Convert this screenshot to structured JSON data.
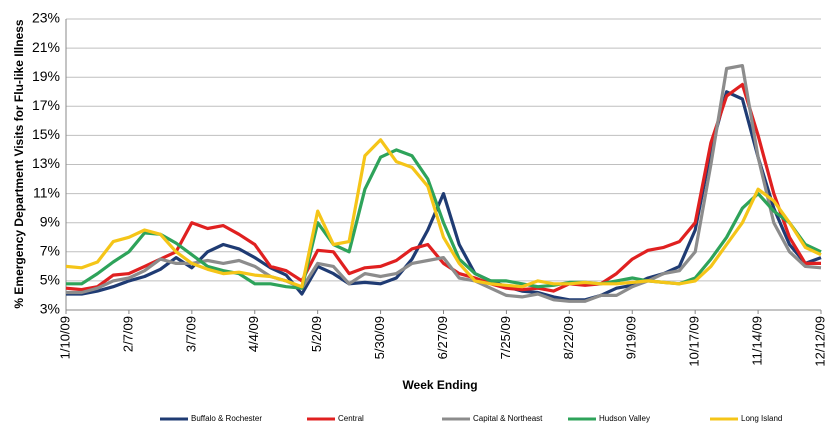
{
  "chart_data": {
    "type": "line",
    "x_label": "Week Ending",
    "y_label": "% Emergency Department Visits for Flu-like Illness",
    "categories": [
      "1/10/09",
      null,
      null,
      null,
      "2/7/09",
      null,
      null,
      null,
      "3/7/09",
      null,
      null,
      null,
      "4/4/09",
      null,
      null,
      null,
      "5/2/09",
      null,
      null,
      null,
      "5/30/09",
      null,
      null,
      null,
      "6/27/09",
      null,
      null,
      null,
      "7/25/09",
      null,
      null,
      null,
      "8/22/09",
      null,
      null,
      null,
      "9/19/09",
      null,
      null,
      null,
      "10/17/09",
      null,
      null,
      null,
      "11/14/09",
      null,
      null,
      null,
      "12/12/09"
    ],
    "ylim": [
      3,
      23
    ],
    "yticks": [
      {
        "value": 3,
        "label": "3%"
      },
      {
        "value": 5,
        "label": "5%"
      },
      {
        "value": 7,
        "label": "7%"
      },
      {
        "value": 9,
        "label": "9%"
      },
      {
        "value": 11,
        "label": "11%"
      },
      {
        "value": 13,
        "label": "13%"
      },
      {
        "value": 15,
        "label": "15%"
      },
      {
        "value": 17,
        "label": "17%"
      },
      {
        "value": 19,
        "label": "19%"
      },
      {
        "value": 21,
        "label": "21%"
      },
      {
        "value": 23,
        "label": "23%"
      }
    ],
    "grid": true,
    "legend": "bottom",
    "series": [
      {
        "name": "Buffalo & Rochester",
        "color": "#1f3b73",
        "values": [
          4.1,
          4.1,
          4.3,
          4.6,
          5.0,
          5.3,
          5.8,
          6.6,
          5.9,
          7.0,
          7.5,
          7.2,
          6.6,
          5.9,
          5.4,
          4.1,
          6.0,
          5.5,
          4.8,
          4.9,
          4.8,
          5.2,
          6.5,
          8.5,
          11.0,
          7.5,
          5.5,
          5.0,
          4.6,
          4.3,
          4.2,
          3.9,
          3.7,
          3.7,
          4.0,
          4.5,
          4.7,
          5.2,
          5.5,
          6.0,
          8.5,
          14.0,
          18.0,
          17.5,
          13.5,
          10.0,
          7.5,
          6.2,
          6.6
        ]
      },
      {
        "name": "Central",
        "color": "#e02020",
        "values": [
          4.5,
          4.4,
          4.6,
          5.4,
          5.5,
          6.0,
          6.5,
          7.0,
          9.0,
          8.6,
          8.8,
          8.2,
          7.5,
          6.0,
          5.7,
          5.0,
          7.1,
          7.0,
          5.5,
          5.9,
          6.0,
          6.4,
          7.2,
          7.5,
          6.2,
          5.5,
          5.2,
          4.8,
          4.5,
          4.4,
          4.5,
          4.3,
          4.8,
          4.7,
          4.8,
          5.5,
          6.5,
          7.1,
          7.3,
          7.7,
          9.0,
          14.5,
          17.7,
          18.5,
          15.0,
          11.0,
          8.0,
          6.2,
          6.2
        ]
      },
      {
        "name": "Capital & Northeast",
        "color": "#8c8c8c",
        "values": [
          4.2,
          4.2,
          4.5,
          5.0,
          5.2,
          5.7,
          6.5,
          6.2,
          6.2,
          6.4,
          6.2,
          6.4,
          6.0,
          5.3,
          5.0,
          4.5,
          6.2,
          6.0,
          4.8,
          5.5,
          5.3,
          5.5,
          6.2,
          6.4,
          6.6,
          5.2,
          5.0,
          4.5,
          4.0,
          3.9,
          4.1,
          3.7,
          3.6,
          3.6,
          4.0,
          4.0,
          4.6,
          5.0,
          5.5,
          5.7,
          7.0,
          13.0,
          19.6,
          19.8,
          13.5,
          9.0,
          7.0,
          6.0,
          5.9
        ]
      },
      {
        "name": "Hudson Valley",
        "color": "#2ea35a",
        "values": [
          4.8,
          4.8,
          5.5,
          6.3,
          7.0,
          8.3,
          8.2,
          7.6,
          6.8,
          6.0,
          5.7,
          5.5,
          4.8,
          4.8,
          4.6,
          4.5,
          9.0,
          7.5,
          7.0,
          11.3,
          13.5,
          14.0,
          13.6,
          12.0,
          9.0,
          6.5,
          5.5,
          5.0,
          5.0,
          4.8,
          4.6,
          4.7,
          4.9,
          4.9,
          4.8,
          5.0,
          5.2,
          5.0,
          4.9,
          4.8,
          5.2,
          6.5,
          8.0,
          10.0,
          11.0,
          9.8,
          9.0,
          7.5,
          7.0
        ]
      },
      {
        "name": "Long Island",
        "color": "#f5c518",
        "values": [
          6.0,
          5.9,
          6.3,
          7.7,
          8.0,
          8.5,
          8.2,
          7.0,
          6.2,
          5.8,
          5.5,
          5.6,
          5.4,
          5.3,
          5.0,
          4.6,
          9.8,
          7.5,
          7.7,
          13.6,
          14.7,
          13.2,
          12.8,
          11.5,
          8.0,
          6.2,
          5.0,
          4.8,
          4.7,
          4.6,
          5.0,
          4.8,
          4.8,
          4.9,
          4.8,
          4.8,
          4.9,
          5.0,
          4.9,
          4.8,
          5.0,
          6.0,
          7.5,
          9.0,
          11.3,
          10.5,
          9.0,
          7.3,
          6.8
        ]
      }
    ]
  }
}
